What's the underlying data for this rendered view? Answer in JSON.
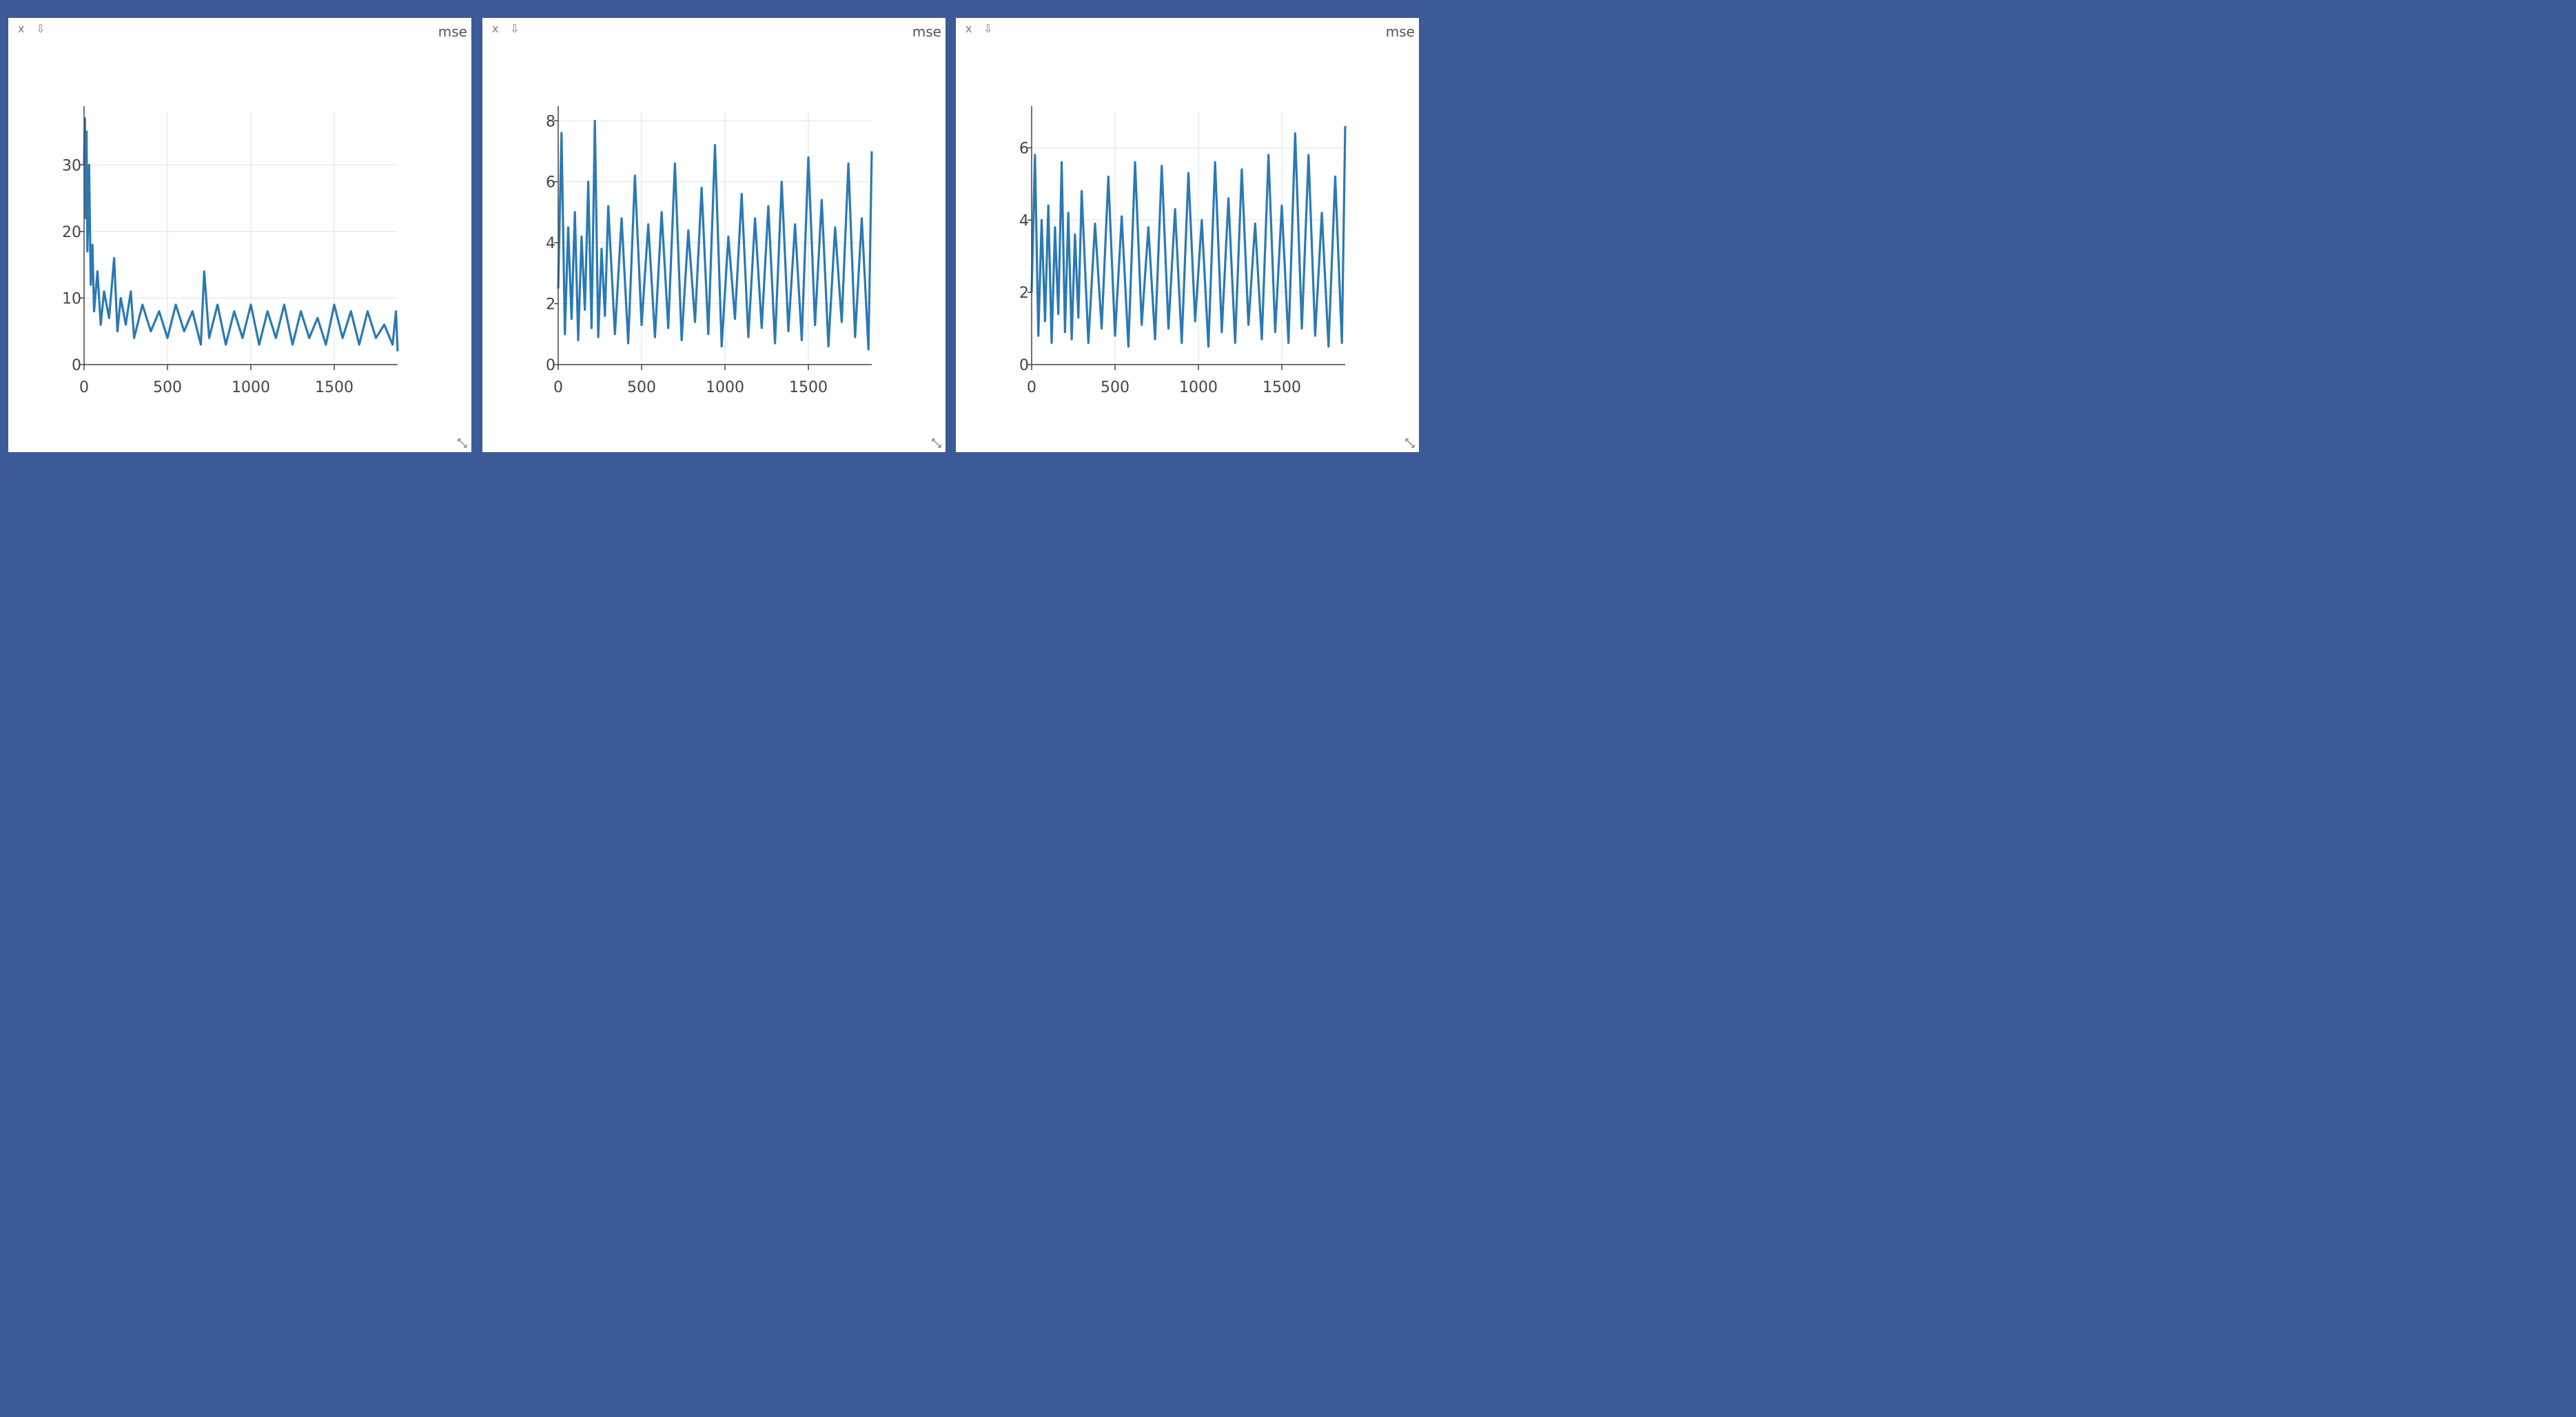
{
  "workspace": {
    "background_color": "#3c5a96"
  },
  "icons": {
    "close": "close-icon",
    "save": "download-icon",
    "resize": "resize-handle-icon"
  },
  "panes": [
    {
      "close_label": "x",
      "save_label": "⇩",
      "title": "mse"
    },
    {
      "close_label": "x",
      "save_label": "⇩",
      "title": "mse"
    },
    {
      "close_label": "x",
      "save_label": "⇩",
      "title": "mse"
    }
  ],
  "chart_data": [
    {
      "type": "line",
      "line_color": "#2a79b5",
      "grid": true,
      "xlim": [
        0,
        1880
      ],
      "ylim": [
        0,
        38
      ],
      "xticks": [
        0,
        500,
        1000,
        1500
      ],
      "xtick_labels": [
        "0",
        "500",
        "1000",
        "1500"
      ],
      "yticks": [
        0,
        10,
        20,
        30
      ],
      "ytick_labels": [
        "0",
        "10",
        "20",
        "30"
      ],
      "series": [
        {
          "x": [
            0,
            5,
            10,
            15,
            20,
            30,
            40,
            50,
            60,
            80,
            100,
            120,
            150,
            180,
            200,
            220,
            250,
            280,
            300,
            350,
            400,
            450,
            500,
            550,
            600,
            650,
            700,
            720,
            750,
            800,
            850,
            900,
            950,
            1000,
            1050,
            1100,
            1150,
            1200,
            1250,
            1300,
            1350,
            1400,
            1450,
            1500,
            1550,
            1600,
            1650,
            1700,
            1750,
            1800,
            1850,
            1870,
            1880
          ],
          "y": [
            30,
            37,
            22,
            35,
            17,
            30,
            12,
            18,
            8,
            14,
            6,
            11,
            7,
            16,
            5,
            10,
            6,
            11,
            4,
            9,
            5,
            8,
            4,
            9,
            5,
            8,
            3,
            14,
            4,
            9,
            3,
            8,
            4,
            9,
            3,
            8,
            4,
            9,
            3,
            8,
            4,
            7,
            3,
            9,
            4,
            8,
            3,
            8,
            4,
            6,
            3,
            8,
            2
          ]
        }
      ]
    },
    {
      "type": "line",
      "line_color": "#2a79b5",
      "grid": true,
      "xlim": [
        0,
        1880
      ],
      "ylim": [
        0,
        8.3
      ],
      "xticks": [
        0,
        500,
        1000,
        1500
      ],
      "xtick_labels": [
        "0",
        "500",
        "1000",
        "1500"
      ],
      "yticks": [
        0,
        2,
        4,
        6,
        8
      ],
      "ytick_labels": [
        "0",
        "2",
        "4",
        "6",
        "8"
      ],
      "series": [
        {
          "x": [
            0,
            20,
            40,
            60,
            80,
            100,
            120,
            140,
            160,
            180,
            200,
            220,
            240,
            260,
            280,
            300,
            340,
            380,
            420,
            460,
            500,
            540,
            580,
            620,
            660,
            700,
            740,
            780,
            820,
            860,
            900,
            940,
            980,
            1020,
            1060,
            1100,
            1140,
            1180,
            1220,
            1260,
            1300,
            1340,
            1380,
            1420,
            1460,
            1500,
            1540,
            1580,
            1620,
            1660,
            1700,
            1740,
            1780,
            1820,
            1860,
            1880
          ],
          "y": [
            2.5,
            7.6,
            1.0,
            4.5,
            1.5,
            5.0,
            0.8,
            4.2,
            1.8,
            6.0,
            1.2,
            8.0,
            0.9,
            3.8,
            1.6,
            5.2,
            1.0,
            4.8,
            0.7,
            6.2,
            1.3,
            4.6,
            0.9,
            5.0,
            1.2,
            6.6,
            0.8,
            4.4,
            1.4,
            5.8,
            1.0,
            7.2,
            0.6,
            4.2,
            1.5,
            5.6,
            0.9,
            4.8,
            1.2,
            5.2,
            0.7,
            6.0,
            1.1,
            4.6,
            0.8,
            6.8,
            1.3,
            5.4,
            0.6,
            4.5,
            1.4,
            6.6,
            0.9,
            4.8,
            0.5,
            7.0
          ]
        }
      ]
    },
    {
      "type": "line",
      "line_color": "#2a79b5",
      "grid": true,
      "xlim": [
        0,
        1880
      ],
      "ylim": [
        0,
        7.0
      ],
      "xticks": [
        0,
        500,
        1000,
        1500
      ],
      "xtick_labels": [
        "0",
        "500",
        "1000",
        "1500"
      ],
      "yticks": [
        0,
        2,
        4,
        6
      ],
      "ytick_labels": [
        "0",
        "2",
        "4",
        "6"
      ],
      "series": [
        {
          "x": [
            0,
            20,
            40,
            60,
            80,
            100,
            120,
            140,
            160,
            180,
            200,
            220,
            240,
            260,
            280,
            300,
            340,
            380,
            420,
            460,
            500,
            540,
            580,
            620,
            660,
            700,
            740,
            780,
            820,
            860,
            900,
            940,
            980,
            1020,
            1060,
            1100,
            1140,
            1180,
            1220,
            1260,
            1300,
            1340,
            1380,
            1420,
            1460,
            1500,
            1540,
            1580,
            1620,
            1660,
            1700,
            1740,
            1780,
            1820,
            1860,
            1880
          ],
          "y": [
            2.0,
            5.8,
            0.8,
            4.0,
            1.2,
            4.4,
            0.6,
            3.8,
            1.4,
            5.6,
            0.9,
            4.2,
            0.7,
            3.6,
            1.3,
            4.8,
            0.6,
            3.9,
            1.0,
            5.2,
            0.8,
            4.1,
            0.5,
            5.6,
            1.1,
            3.8,
            0.7,
            5.5,
            1.0,
            4.3,
            0.6,
            5.3,
            1.2,
            4.0,
            0.5,
            5.6,
            0.9,
            4.6,
            0.6,
            5.4,
            1.1,
            3.9,
            0.7,
            5.8,
            0.9,
            4.4,
            0.6,
            6.4,
            1.0,
            5.8,
            0.8,
            4.2,
            0.5,
            5.2,
            0.6,
            6.6
          ]
        }
      ]
    }
  ]
}
